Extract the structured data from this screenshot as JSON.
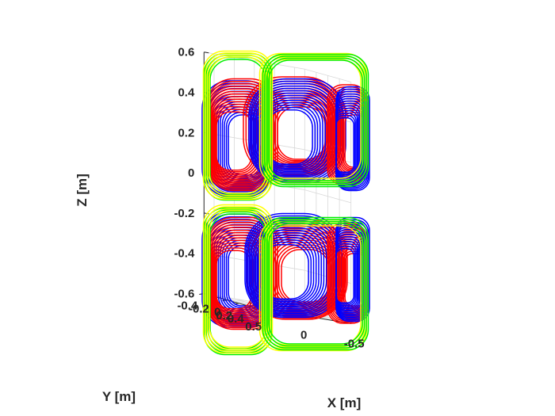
{
  "chart_data": {
    "type": "line3d",
    "title": "",
    "xlabel": "X [m]",
    "ylabel": "Y [m]",
    "zlabel": "Z [m]",
    "xticks": [
      "0.5",
      "0",
      "-0.5"
    ],
    "yticks": [
      "-0.4",
      "-0.2",
      "0",
      "0.2",
      "0.4"
    ],
    "zticks": [
      "0.6",
      "0.4",
      "0.2",
      "0",
      "-0.2",
      "-0.4",
      "-0.6"
    ],
    "xlim": [
      -0.5,
      0.5
    ],
    "ylim": [
      -0.4,
      0.4
    ],
    "zlim": [
      -0.6,
      0.6
    ],
    "grid": true,
    "series": [
      {
        "color": "#0000ff",
        "coils": 6,
        "turns_per_coil": 14
      },
      {
        "color": "#ff0000",
        "coils": 6,
        "turns_per_coil": 14
      },
      {
        "color": "#00ee00",
        "coils": 4,
        "turns_per_coil": 4
      },
      {
        "color": "#ffff00",
        "coils": 4,
        "turns_per_coil": 4
      }
    ]
  }
}
